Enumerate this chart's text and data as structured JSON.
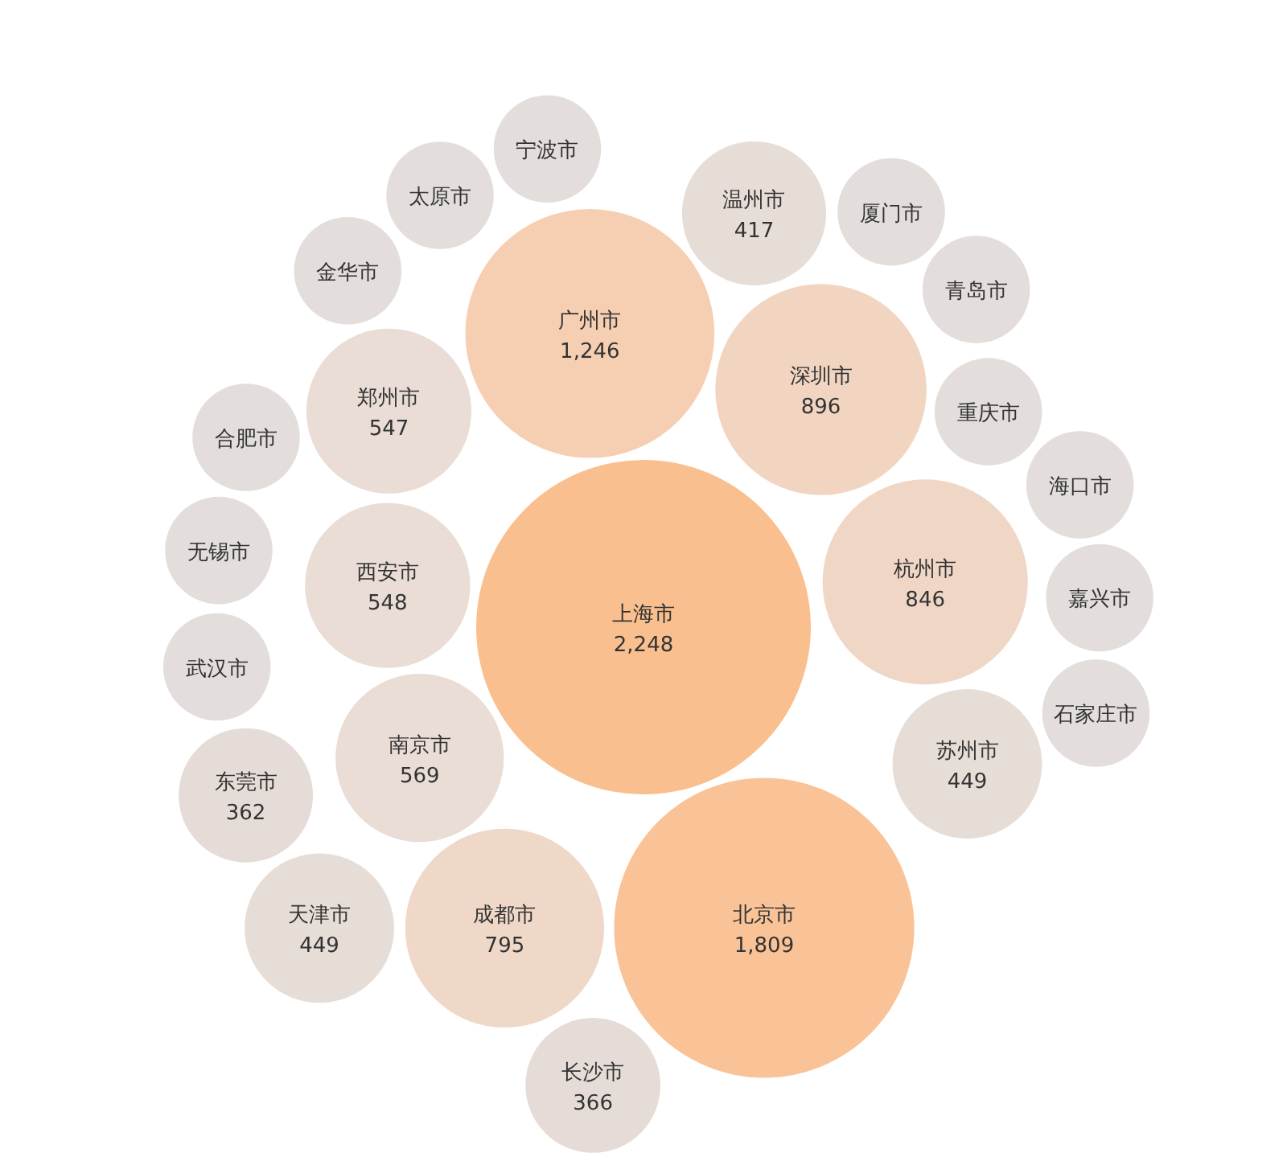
{
  "chart_data": {
    "type": "other",
    "value_labels": [
      "2,248",
      "1,809",
      "1,246",
      "896",
      "846",
      "795",
      "569",
      "548",
      "547",
      "449",
      "449",
      "417",
      "366",
      "362",
      null,
      null,
      null,
      null,
      null,
      null,
      null,
      null,
      null,
      null,
      null,
      null
    ],
    "categories": [
      "上海市",
      "北京市",
      "广州市",
      "深圳市",
      "杭州市",
      "成都市",
      "南京市",
      "西安市",
      "郑州市",
      "苏州市",
      "天津市",
      "温州市",
      "长沙市",
      "东莞市",
      "重庆市",
      "武汉市",
      "无锡市",
      "合肥市",
      "金华市",
      "太原市",
      "宁波市",
      "厦门市",
      "青岛市",
      "海口市",
      "嘉兴市",
      "石家庄市"
    ],
    "values": [
      2248,
      1809,
      1246,
      896,
      846,
      795,
      569,
      548,
      547,
      449,
      449,
      417,
      366,
      362,
      null,
      null,
      null,
      null,
      null,
      null,
      null,
      null,
      null,
      null,
      null,
      null
    ],
    "colors": [
      "#f9bf8e",
      "#f9c297",
      "#f6cfb2",
      "#f1d5c1",
      "#f0d7c5",
      "#efd8c8",
      "#e9ddd5",
      "#e9ddd5",
      "#e9ddd5",
      "#e7ddd7",
      "#e7ddd7",
      "#e7ddd7",
      "#e5dcd8",
      "#e5dcd8",
      "#e3dedb",
      "#e3dedb",
      "#e3dedb",
      "#e3dedb",
      "#e3dedb",
      "#e3dedb",
      "#e3dedb",
      "#e3dedb",
      "#e3dedb",
      "#e3dedb",
      "#e3dedb",
      "#e3dedb"
    ]
  }
}
